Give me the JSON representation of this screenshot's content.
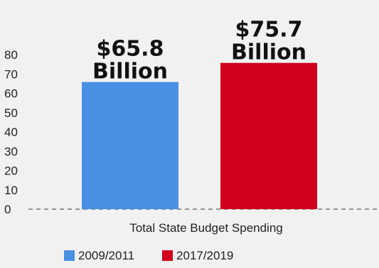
{
  "chart_data": {
    "type": "bar",
    "categories": [
      "Total State Budget Spending"
    ],
    "xlabel": "Total State Budget Spending",
    "ylabel": "",
    "ylim": [
      0,
      80
    ],
    "yticks": [
      0,
      10,
      20,
      30,
      40,
      50,
      60,
      70,
      80
    ],
    "grid": false,
    "legend_position": "bottom",
    "series": [
      {
        "name": "2009/2011",
        "values": [
          65.8
        ],
        "color": "#4a90e2",
        "label_line1": "$65.8",
        "label_line2": "Billion"
      },
      {
        "name": "2017/2019",
        "values": [
          75.7
        ],
        "color": "#d0021b",
        "label_line1": "$75.7",
        "label_line2": "Billion"
      }
    ]
  }
}
